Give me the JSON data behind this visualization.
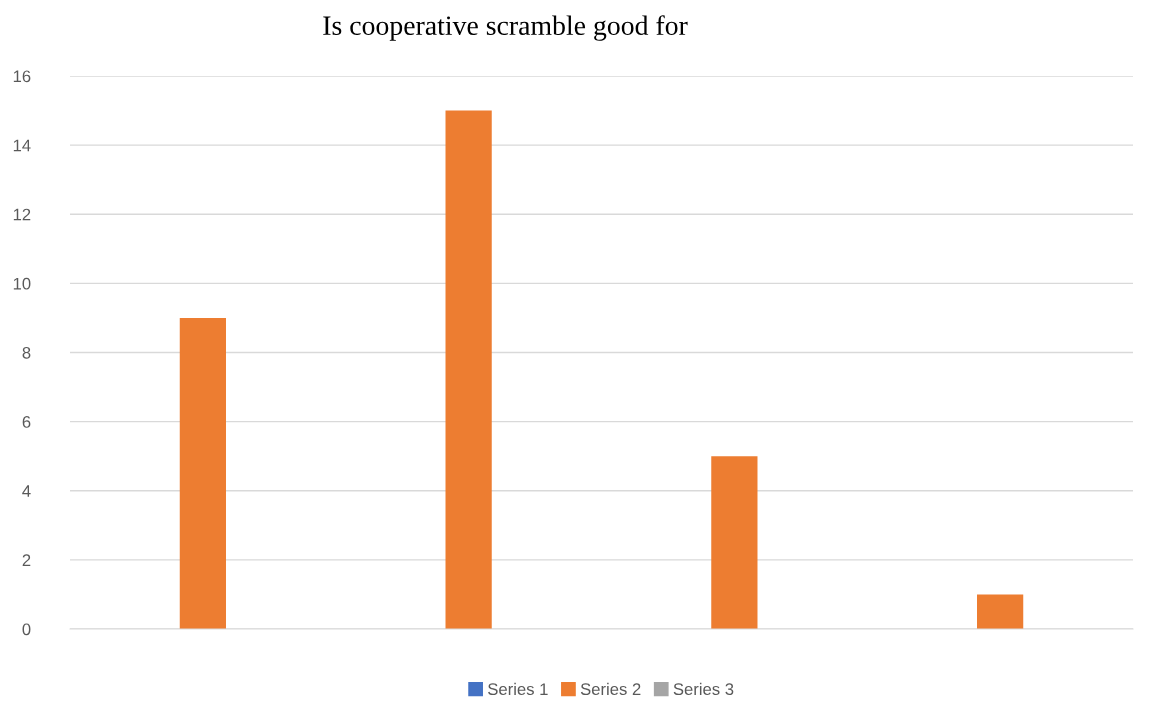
{
  "chart_data": {
    "type": "bar",
    "title": "Is cooperative scramble good for",
    "categories": [
      null,
      null,
      null,
      null
    ],
    "series": [
      {
        "name": "Series 1",
        "color": "#4472c4",
        "values": [
          null,
          null,
          null,
          null
        ]
      },
      {
        "name": "Series 2",
        "color": "#ed7d31",
        "values": [
          9,
          15,
          5,
          1
        ]
      },
      {
        "name": "Series 3",
        "color": "#a5a5a5",
        "values": [
          null,
          null,
          null,
          null
        ]
      }
    ],
    "ylim": [
      0,
      16
    ],
    "yticks": [
      0,
      2,
      4,
      6,
      8,
      10,
      12,
      14,
      16
    ],
    "grid": "y",
    "legend": "bottom"
  }
}
